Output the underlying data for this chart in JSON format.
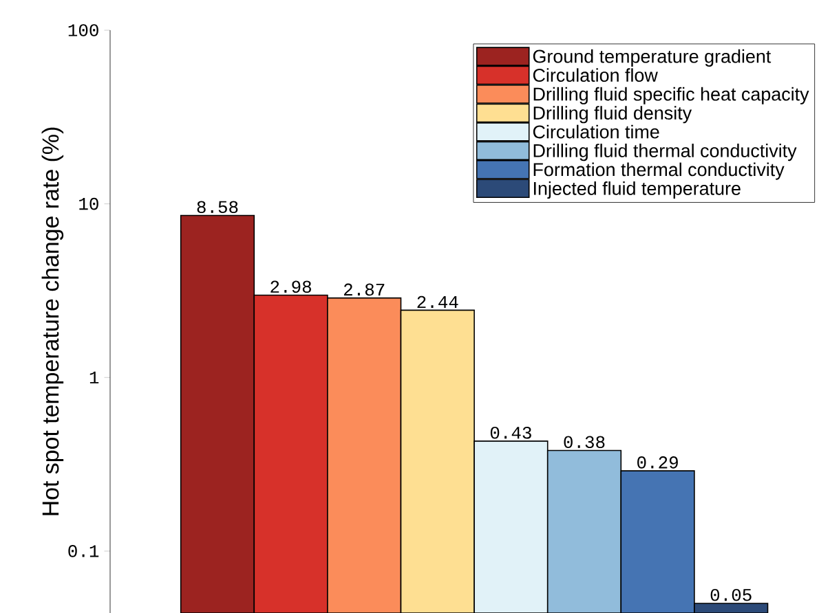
{
  "chart_data": {
    "type": "bar",
    "ylabel": "Hot spot temperature change rate (%)",
    "categories": [
      null,
      null,
      null,
      null,
      null,
      null,
      null,
      null
    ],
    "stacked": true,
    "series": [
      {
        "name": "Ground temperature gradient",
        "color": "#9c2320",
        "values": [
          8.58,
          null,
          null,
          null,
          null,
          null,
          null,
          null
        ]
      },
      {
        "name": "Circulation flow",
        "color": "#d7312a",
        "values": [
          null,
          2.98,
          null,
          null,
          null,
          null,
          null,
          null
        ]
      },
      {
        "name": "Drilling fluid specific heat capacity",
        "color": "#fb8c5a",
        "values": [
          null,
          null,
          2.87,
          null,
          null,
          null,
          null,
          null
        ]
      },
      {
        "name": "Drilling fluid density",
        "color": "#fedf92",
        "values": [
          null,
          null,
          null,
          2.44,
          null,
          null,
          null,
          null
        ]
      },
      {
        "name": "Circulation time",
        "color": "#e1f2f8",
        "values": [
          null,
          null,
          null,
          null,
          0.43,
          null,
          null,
          null
        ]
      },
      {
        "name": "Drilling fluid thermal conductivity",
        "color": "#91bcdb",
        "values": [
          null,
          null,
          null,
          null,
          null,
          0.38,
          null,
          null
        ]
      },
      {
        "name": "Formation thermal conductivity",
        "color": "#4574b3",
        "values": [
          null,
          null,
          null,
          null,
          null,
          null,
          0.29,
          null
        ]
      },
      {
        "name": "Injected fluid temperature",
        "color": "#2c4a78",
        "values": [
          null,
          null,
          null,
          null,
          null,
          null,
          null,
          0.05
        ]
      }
    ],
    "log": true,
    "ylim": [
      0.044,
      100
    ],
    "yticks": [
      0.1,
      1,
      10,
      100
    ],
    "data_labels": true,
    "legend": "top right",
    "grid": false
  }
}
